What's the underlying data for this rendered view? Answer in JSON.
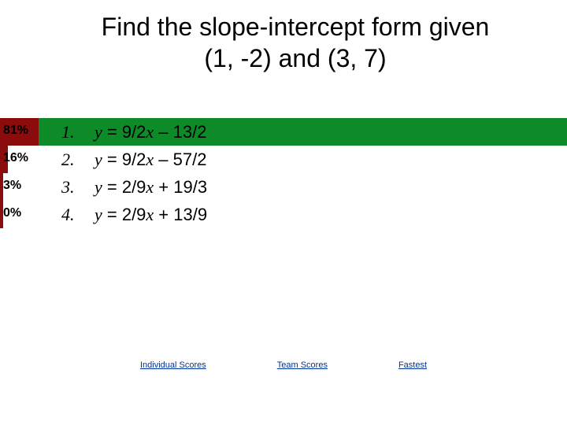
{
  "title_line1": "Find the slope-intercept form given",
  "title_line2": "(1, -2) and (3, 7)",
  "max_bar_width": 720,
  "bar_base_width": 60,
  "answers": [
    {
      "percent": "81%",
      "pct_val": 81,
      "num": "1.",
      "eq_html": "<span class='it'>y</span> = 9/2<span class='it'>x</span> – 13/2",
      "fill_color": "#8a0c0c",
      "bg_color": "#0f8a28",
      "correct": true
    },
    {
      "percent": "16%",
      "pct_val": 16,
      "num": "2.",
      "eq_html": "<span class='it'>y</span> = 9/2<span class='it'>x</span> – 57/2",
      "fill_color": "#8a0c0c",
      "bg_color": "transparent",
      "correct": false
    },
    {
      "percent": "3%",
      "pct_val": 3,
      "num": "3.",
      "eq_html": "<span class='it'>y</span> = 2/9<span class='it'>x</span> + 19/3",
      "fill_color": "#8a0c0c",
      "bg_color": "transparent",
      "correct": false
    },
    {
      "percent": "0%",
      "pct_val": 0,
      "num": "4.",
      "eq_html": "<span class='it'>y</span> = 2/9<span class='it'>x</span> + 13/9",
      "fill_color": "#8a0c0c",
      "bg_color": "transparent",
      "correct": false
    }
  ],
  "links": [
    {
      "label": "Individual Scores"
    },
    {
      "label": "Team Scores"
    },
    {
      "label": "Fastest"
    }
  ]
}
